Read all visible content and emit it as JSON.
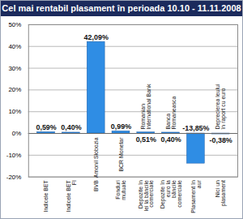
{
  "chart_data": {
    "type": "bar",
    "title": "Cel mai rentabil plasament în perioada 10.10 - 11.11.2008",
    "categories": [
      "Indicele BET",
      "Indicele BET FI",
      "BVB",
      "Fonduri mutuale",
      "Depozite în lei la băncile comerciale",
      "Depozite în euro la băncile comerciale",
      "Plasament în aur",
      "Nici un plasament"
    ],
    "values": [
      0.59,
      0.4,
      42.09,
      0.99,
      0.51,
      0.4,
      -13.85,
      -0.38
    ],
    "value_labels": [
      "0,59%",
      "0,40%",
      "42,09%",
      "0,99%",
      "0,51%",
      "0,40%",
      "-13,85%",
      "-0,38%"
    ],
    "annotations": [
      {
        "category": "BVB",
        "text": "Amonil Slobozia"
      },
      {
        "category": "Fonduri mutuale",
        "text": "BCR Monetar"
      },
      {
        "category": "Depozite în lei la băncile comerciale",
        "text": "Romanian International Bank"
      },
      {
        "category": "Depozite în euro la băncile comerciale",
        "text": "Banca Romaneasca"
      },
      {
        "category": "Nici un plasament",
        "text": "Deprecierea leului în raport cu euro"
      }
    ],
    "color": "#2f8de4",
    "ylim": [
      -20,
      50
    ],
    "yticks": [
      {
        "value": -20,
        "label": "-20%"
      },
      {
        "value": -10,
        "label": "-10%"
      },
      {
        "value": 0,
        "label": "0%"
      },
      {
        "value": 10,
        "label": "10%"
      },
      {
        "value": 20,
        "label": "20%"
      },
      {
        "value": 30,
        "label": "30%"
      },
      {
        "value": 40,
        "label": "40%"
      },
      {
        "value": 50,
        "label": "50%"
      }
    ],
    "grid": true,
    "data_labels": true
  }
}
